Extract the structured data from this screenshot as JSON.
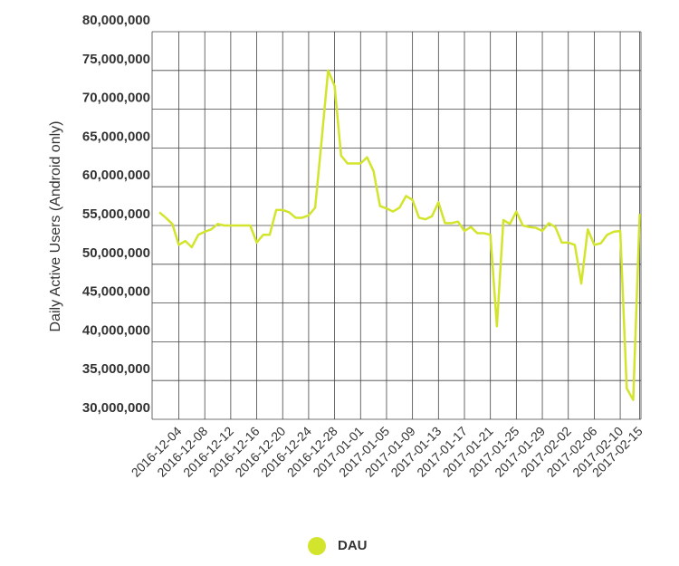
{
  "chart_data": {
    "type": "line",
    "y_label": "Daily Active Users (Android only)",
    "categories": [
      null,
      null,
      null,
      "2016-12-04",
      null,
      null,
      null,
      "2016-12-08",
      null,
      null,
      null,
      "2016-12-12",
      null,
      null,
      null,
      "2016-12-16",
      null,
      null,
      null,
      "2016-12-20",
      null,
      null,
      null,
      "2016-12-24",
      null,
      null,
      null,
      "2016-12-28",
      null,
      null,
      null,
      "2017-01-01",
      null,
      null,
      null,
      "2017-01-05",
      null,
      null,
      null,
      "2017-01-09",
      null,
      null,
      null,
      "2017-01-13",
      null,
      null,
      null,
      "2017-01-17",
      null,
      null,
      null,
      "2017-01-21",
      null,
      null,
      null,
      "2017-01-25",
      null,
      null,
      null,
      "2017-01-29",
      null,
      null,
      null,
      "2017-02-02",
      null,
      null,
      null,
      "2017-02-06",
      null,
      null,
      null,
      "2017-02-10",
      null,
      null,
      "2017-02-15"
    ],
    "series": [
      {
        "name": "DAU",
        "color": "#d2e52c",
        "values": [
          56700000,
          56000000,
          55200000,
          52500000,
          53000000,
          52200000,
          53800000,
          54200000,
          54500000,
          55200000,
          55000000,
          55000000,
          55000000,
          55000000,
          55000000,
          52800000,
          53800000,
          53800000,
          57000000,
          57000000,
          56700000,
          56000000,
          56000000,
          56300000,
          57300000,
          66000000,
          75000000,
          73000000,
          64000000,
          63000000,
          63000000,
          63000000,
          63800000,
          62000000,
          57500000,
          57200000,
          56800000,
          57300000,
          58800000,
          58300000,
          56000000,
          55800000,
          56200000,
          58000000,
          55300000,
          55300000,
          55500000,
          54300000,
          54800000,
          54000000,
          54000000,
          53800000,
          42000000,
          55700000,
          55200000,
          56800000,
          55000000,
          54800000,
          54700000,
          54300000,
          55300000,
          54800000,
          52800000,
          52800000,
          52500000,
          47500000,
          54500000,
          52500000,
          52700000,
          53800000,
          54200000,
          54300000,
          34000000,
          32500000,
          56500000
        ]
      }
    ],
    "ylim": [
      30000000,
      80000000
    ],
    "yticks": [
      {
        "value": 30000000,
        "label": "30,000,000"
      },
      {
        "value": 35000000,
        "label": "35,000,000"
      },
      {
        "value": 40000000,
        "label": "40,000,000"
      },
      {
        "value": 45000000,
        "label": "45,000,000"
      },
      {
        "value": 50000000,
        "label": "50,000,000"
      },
      {
        "value": 55000000,
        "label": "55,000,000"
      },
      {
        "value": 60000000,
        "label": "60,000,000"
      },
      {
        "value": 65000000,
        "label": "65,000,000"
      },
      {
        "value": 70000000,
        "label": "70,000,000"
      },
      {
        "value": 75000000,
        "label": "75,000,000"
      },
      {
        "value": 80000000,
        "label": "80,000,000"
      }
    ],
    "grid": true,
    "legend": "bottom"
  }
}
